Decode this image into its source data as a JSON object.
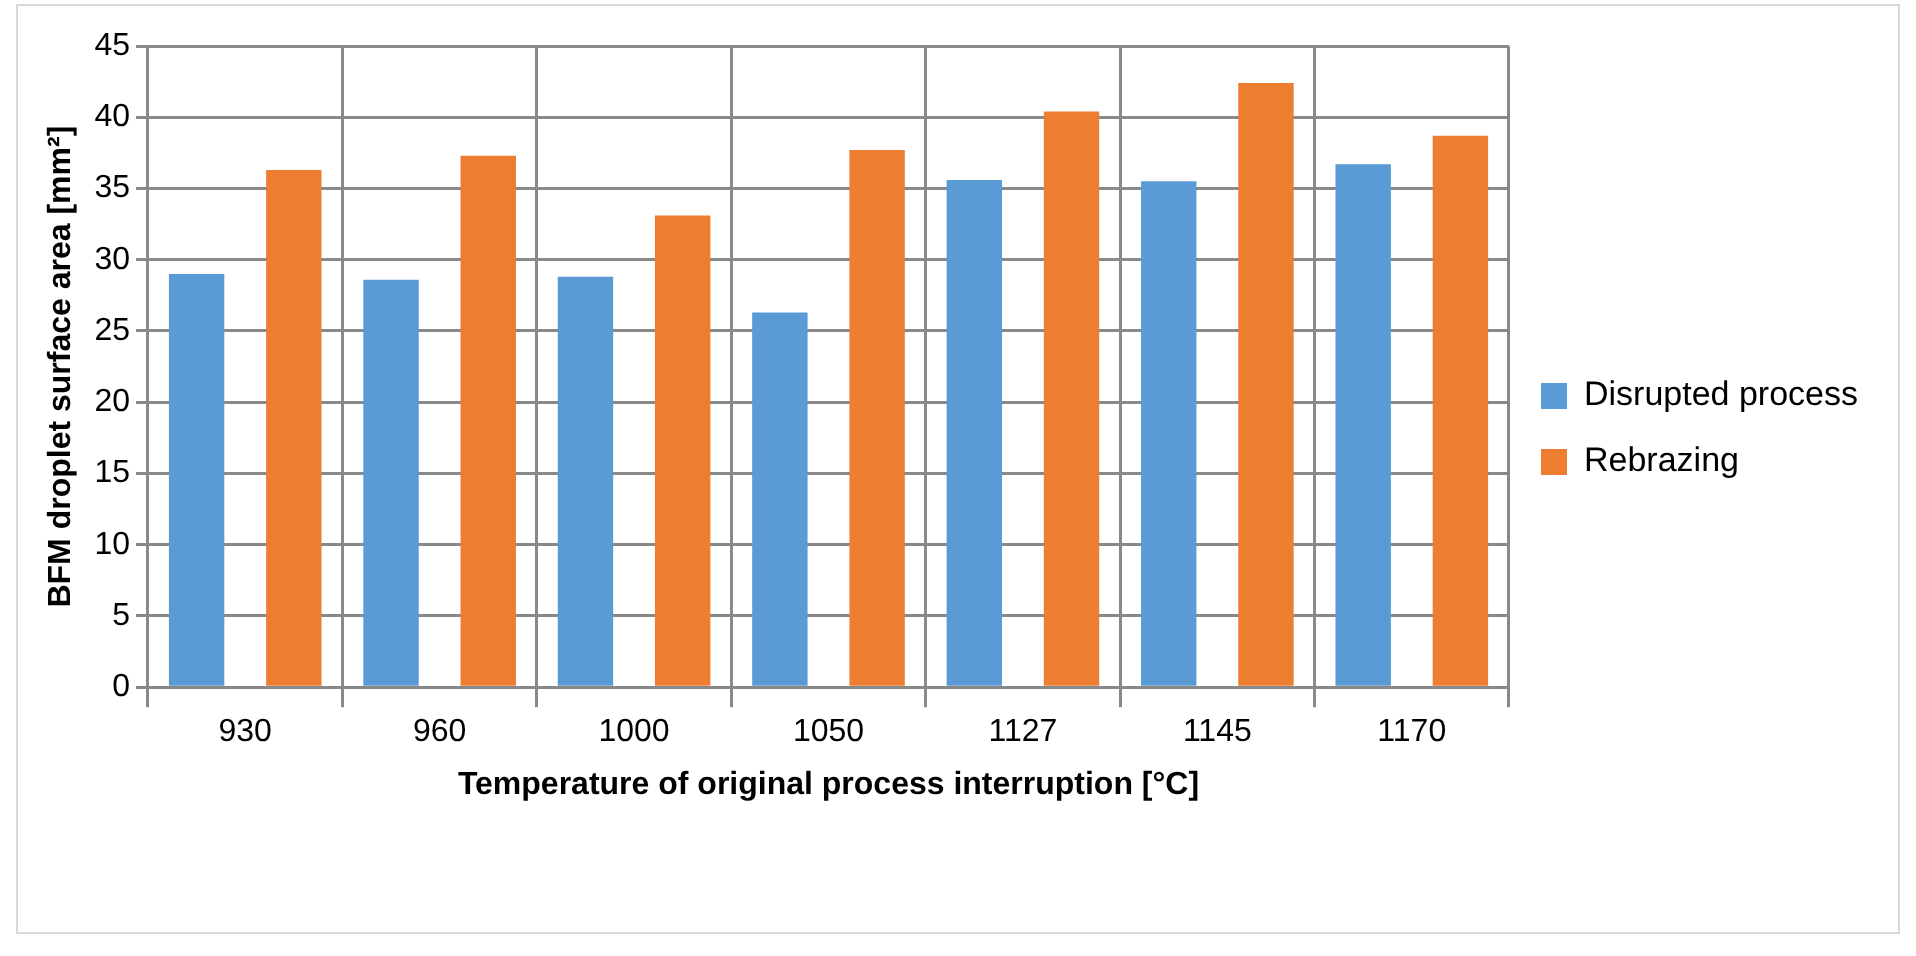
{
  "chart_data": {
    "type": "bar",
    "xlabel": "Temperature of original process interruption [°C]",
    "ylabel": "BFM droplet surface area [mm²]",
    "categories": [
      "930",
      "960",
      "1000",
      "1050",
      "1127",
      "1145",
      "1170"
    ],
    "series": [
      {
        "name": "Disrupted process",
        "color": "#5b9bd5",
        "values": [
          29.0,
          28.6,
          28.8,
          26.3,
          35.6,
          35.5,
          36.7
        ]
      },
      {
        "name": "Rebrazing",
        "color": "#ed7d31",
        "values": [
          36.3,
          37.3,
          33.1,
          37.7,
          40.4,
          42.4,
          38.7
        ]
      }
    ],
    "ylim": [
      0,
      45
    ],
    "yticks": [
      0,
      5,
      10,
      15,
      20,
      25,
      30,
      35,
      40,
      45
    ],
    "grid": true,
    "legend": "right"
  }
}
